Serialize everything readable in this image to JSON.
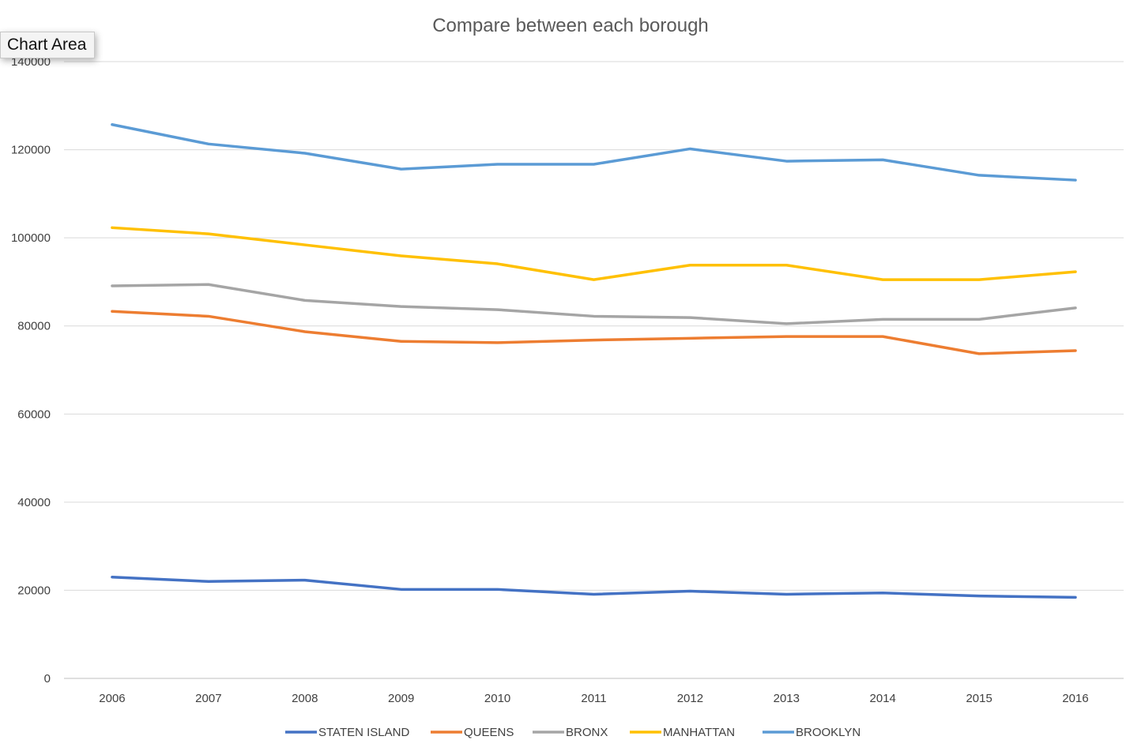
{
  "tooltip": {
    "label": "Chart Area"
  },
  "chart_data": {
    "type": "line",
    "title": "Compare between each borough",
    "xlabel": "",
    "ylabel": "",
    "categories": [
      "2006",
      "2007",
      "2008",
      "2009",
      "2010",
      "2011",
      "2012",
      "2013",
      "2014",
      "2015",
      "2016"
    ],
    "ylim": [
      0,
      140000
    ],
    "yticks": [
      "0",
      "20000",
      "40000",
      "60000",
      "80000",
      "100000",
      "120000",
      "140000"
    ],
    "grid": true,
    "legend_position": "bottom",
    "series": [
      {
        "name": "STATEN ISLAND",
        "color": "#4472C4",
        "values": [
          23000,
          22000,
          22300,
          20200,
          20200,
          19100,
          19800,
          19100,
          19400,
          18700,
          18400
        ]
      },
      {
        "name": "QUEENS",
        "color": "#ED7D31",
        "values": [
          83300,
          82200,
          78700,
          76500,
          76200,
          76800,
          77200,
          77600,
          77600,
          73700,
          74400
        ]
      },
      {
        "name": "BRONX",
        "color": "#A5A5A5",
        "values": [
          89100,
          89400,
          85800,
          84400,
          83700,
          82200,
          81900,
          80500,
          81500,
          81500,
          84100
        ]
      },
      {
        "name": "MANHATTAN",
        "color": "#FFC000",
        "values": [
          102300,
          100900,
          98400,
          95900,
          94100,
          90500,
          93800,
          93800,
          90500,
          90500,
          92300
        ]
      },
      {
        "name": "BROOKLYN",
        "color": "#5B9BD5",
        "values": [
          125700,
          121300,
          119200,
          115600,
          116700,
          116700,
          120200,
          117400,
          117700,
          114200,
          113100
        ]
      }
    ]
  }
}
